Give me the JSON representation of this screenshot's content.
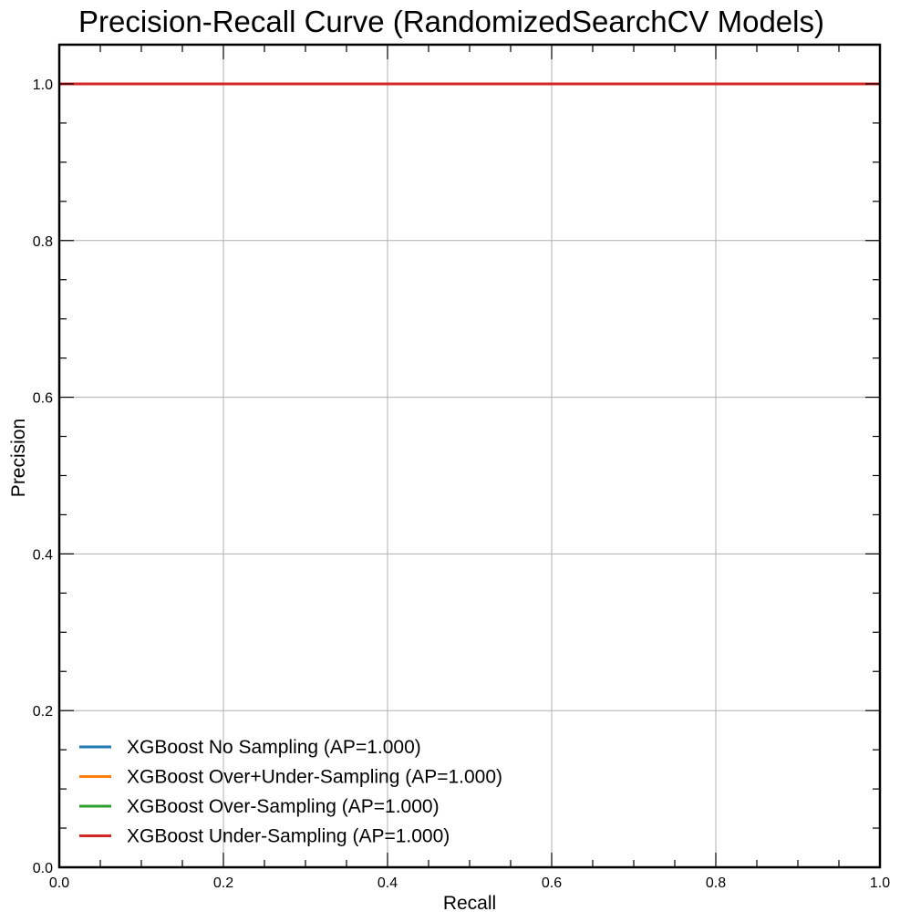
{
  "chart_data": {
    "type": "line",
    "title": "Precision-Recall Curve (RandomizedSearchCV Models)",
    "xlabel": "Recall",
    "ylabel": "Precision",
    "xlim": [
      0,
      1
    ],
    "ylim": [
      0,
      1.05
    ],
    "x_ticks": [
      0.0,
      0.2,
      0.4,
      0.6,
      0.8,
      1.0
    ],
    "x_tick_labels": [
      "0.0",
      "0.2",
      "0.4",
      "0.6",
      "0.8",
      "1.0"
    ],
    "y_ticks": [
      0.0,
      0.2,
      0.4,
      0.6,
      0.8,
      1.0
    ],
    "y_tick_labels": [
      "0.0",
      "0.2",
      "0.4",
      "0.6",
      "0.8",
      "1.0"
    ],
    "grid": true,
    "legend_position": "lower-left",
    "series": [
      {
        "name": "XGBoost No Sampling (AP=1.000)",
        "color": "#1f77b4",
        "x": [
          0.0,
          1.0
        ],
        "y": [
          1.0,
          1.0
        ]
      },
      {
        "name": "XGBoost Over+Under-Sampling (AP=1.000)",
        "color": "#ff7f0e",
        "x": [
          0.0,
          1.0
        ],
        "y": [
          1.0,
          1.0
        ]
      },
      {
        "name": "XGBoost Over-Sampling (AP=1.000)",
        "color": "#2ca02c",
        "x": [
          0.0,
          1.0
        ],
        "y": [
          1.0,
          1.0
        ]
      },
      {
        "name": "XGBoost Under-Sampling (AP=1.000)",
        "color": "#d62728",
        "x": [
          0.0,
          1.0
        ],
        "y": [
          1.0,
          1.0
        ]
      }
    ]
  }
}
